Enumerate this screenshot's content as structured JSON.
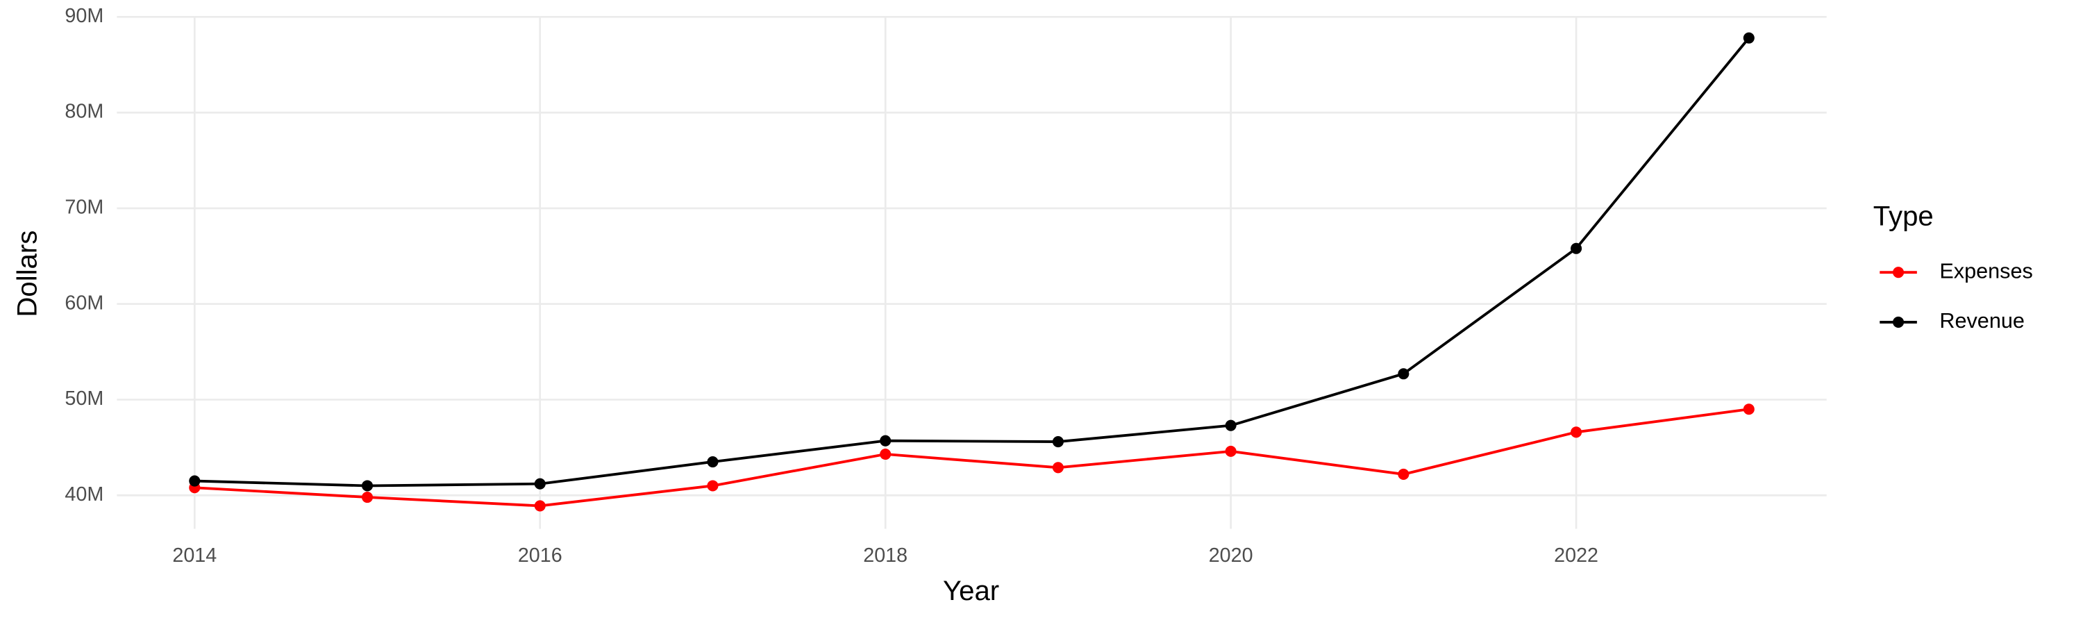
{
  "chart_data": {
    "type": "line",
    "x_label": "Year",
    "y_label": "Dollars",
    "legend_title": "Type",
    "legend_position": "right",
    "grid": true,
    "x": [
      2014,
      2015,
      2016,
      2017,
      2018,
      2019,
      2020,
      2021,
      2022,
      2023
    ],
    "xlim": [
      2013.55,
      2023.45
    ],
    "xticks": [
      2014,
      2016,
      2018,
      2020,
      2022
    ],
    "ylim": [
      36500000,
      90100000
    ],
    "yticks": [
      {
        "value": 40000000,
        "label": "40M"
      },
      {
        "value": 50000000,
        "label": "50M"
      },
      {
        "value": 60000000,
        "label": "60M"
      },
      {
        "value": 70000000,
        "label": "70M"
      },
      {
        "value": 80000000,
        "label": "80M"
      },
      {
        "value": 90000000,
        "label": "90M"
      }
    ],
    "series": [
      {
        "name": "Expenses",
        "color": "#ff0000",
        "values": [
          40800000,
          39800000,
          38900000,
          41000000,
          44300000,
          42900000,
          44600000,
          42200000,
          46600000,
          49000000
        ]
      },
      {
        "name": "Revenue",
        "color": "#000000",
        "values": [
          41500000,
          41000000,
          41200000,
          43500000,
          45700000,
          45600000,
          47300000,
          52700000,
          65800000,
          87800000
        ]
      }
    ]
  }
}
